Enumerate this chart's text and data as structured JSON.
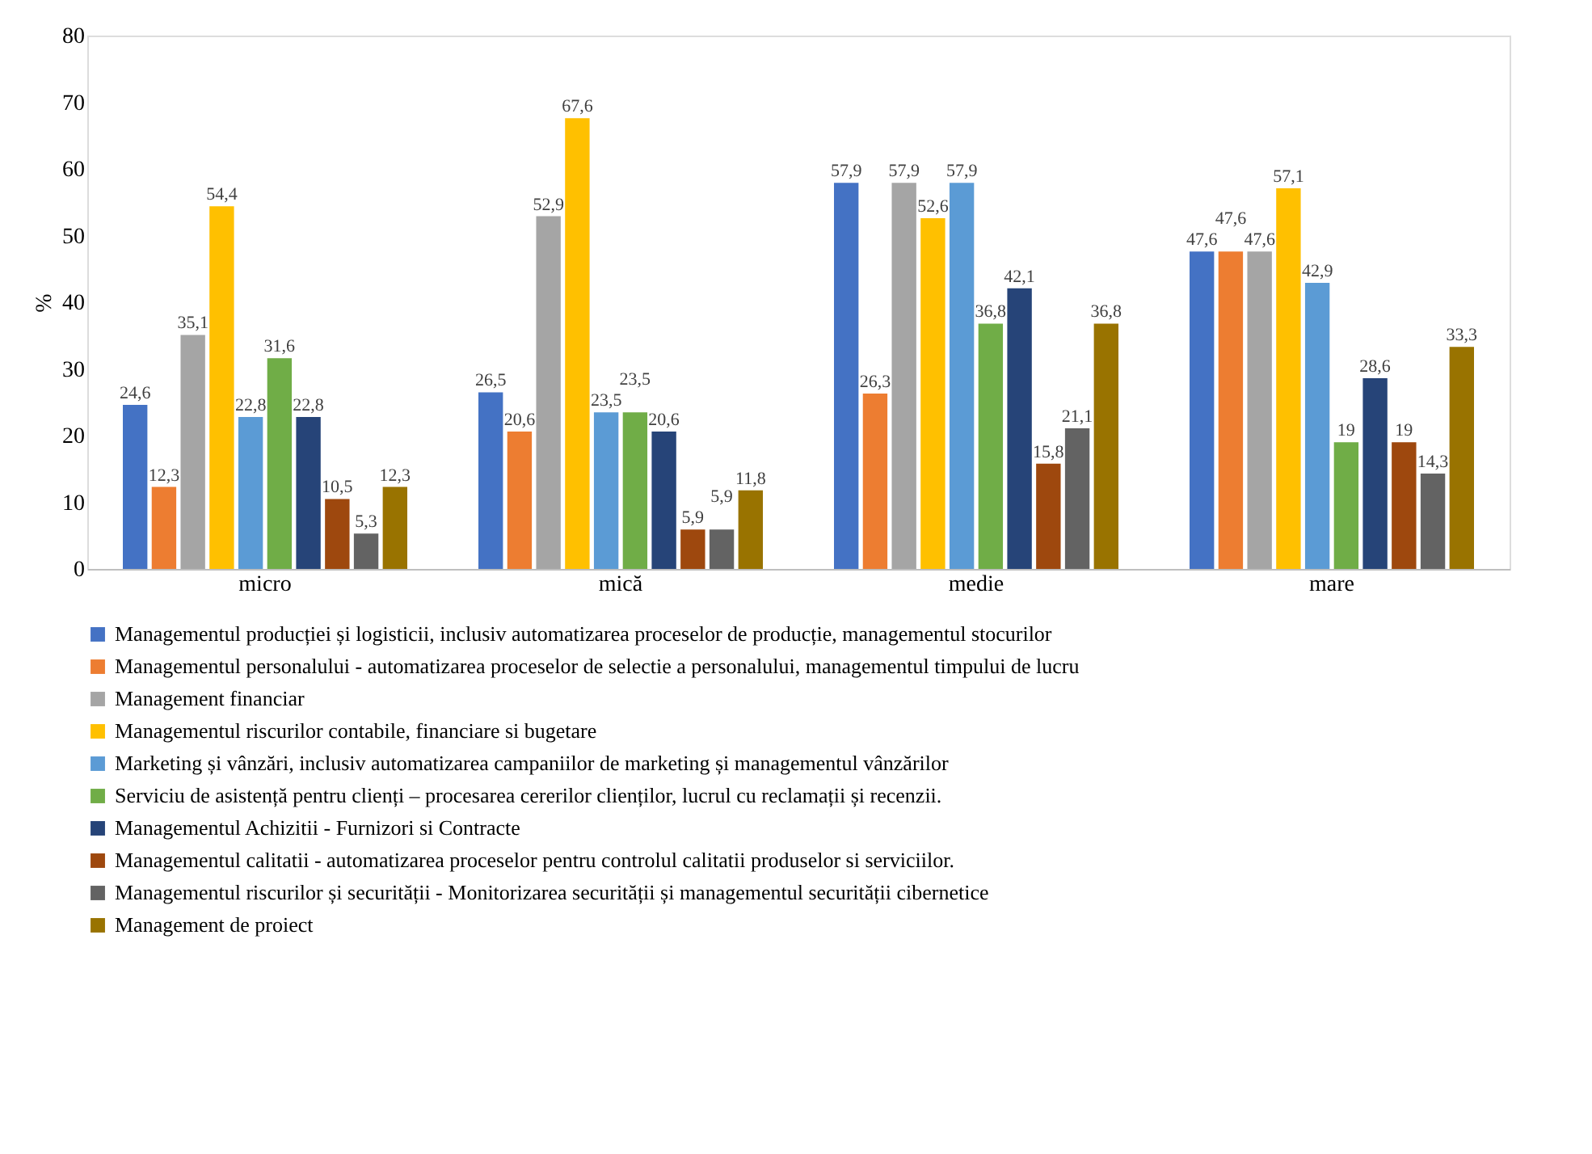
{
  "chart_data": {
    "type": "bar",
    "ylabel": "%",
    "categories": [
      "micro",
      "mică",
      "medie",
      "mare"
    ],
    "ylim": [
      0,
      80
    ],
    "yticks": [
      0,
      10,
      20,
      30,
      40,
      50,
      60,
      70,
      80
    ],
    "grid": false,
    "legend": "bottom",
    "series": [
      {
        "name": "Managementul producției și logisticii, inclusiv automatizarea proceselor de producție, managementul stocurilor",
        "color": "#4472c4",
        "values": [
          24.6,
          26.5,
          57.9,
          47.6
        ],
        "value_labels": [
          "24,6",
          "26,5",
          "57,9",
          "47,6"
        ]
      },
      {
        "name": "Managementul personalului - automatizarea proceselor de selectie a personalului, managementul timpului de lucru",
        "color": "#ed7d31",
        "values": [
          12.3,
          20.6,
          26.3,
          47.6
        ],
        "value_labels": [
          "12,3",
          "20,6",
          "26,3",
          "47,6"
        ]
      },
      {
        "name": "Management financiar",
        "color": "#a5a5a5",
        "values": [
          35.1,
          52.9,
          57.9,
          47.6
        ],
        "value_labels": [
          "35,1",
          "52,9",
          "57,9",
          "47,6"
        ]
      },
      {
        "name": "Managementul riscurilor contabile, financiare si bugetare",
        "color": "#ffc000",
        "values": [
          54.4,
          67.6,
          52.6,
          57.1
        ],
        "value_labels": [
          "54,4",
          "67,6",
          "52,6",
          "57,1"
        ]
      },
      {
        "name": "Marketing și vânzări, inclusiv automatizarea campaniilor de marketing și managementul vânzărilor",
        "color": "#5b9bd5",
        "values": [
          22.8,
          23.5,
          57.9,
          42.9
        ],
        "value_labels": [
          "22,8",
          "23,5",
          "57,9",
          "42,9"
        ]
      },
      {
        "name": "Serviciu de asistență pentru clienți – procesarea cererilor clienților, lucrul cu reclamații și recenzii.",
        "color": "#70ad47",
        "values": [
          31.6,
          23.5,
          36.8,
          19
        ],
        "value_labels": [
          "31,6",
          "23,5",
          "36,8",
          "19"
        ]
      },
      {
        "name": "Managementul Achizitii - Furnizori si Contracte",
        "color": "#264478",
        "values": [
          22.8,
          20.6,
          42.1,
          28.6
        ],
        "value_labels": [
          "22,8",
          "20,6",
          "42,1",
          "28,6"
        ]
      },
      {
        "name": "Managementul calitatii - automatizarea proceselor pentru controlul calitatii produselor si serviciilor.",
        "color": "#9e480e",
        "values": [
          10.5,
          5.9,
          15.8,
          19
        ],
        "value_labels": [
          "10,5",
          "5,9",
          "15,8",
          "19"
        ]
      },
      {
        "name": "Managementul riscurilor și securității - Monitorizarea securității și managementul securității cibernetice",
        "color": "#636363",
        "values": [
          5.3,
          5.9,
          21.1,
          14.3
        ],
        "value_labels": [
          "5,3",
          "5,9",
          "21,1",
          "14,3"
        ]
      },
      {
        "name": "Management de proiect",
        "color": "#997300",
        "values": [
          12.3,
          11.8,
          36.8,
          33.3
        ],
        "value_labels": [
          "12,3",
          "11,8",
          "36,8",
          "33,3"
        ]
      }
    ]
  }
}
